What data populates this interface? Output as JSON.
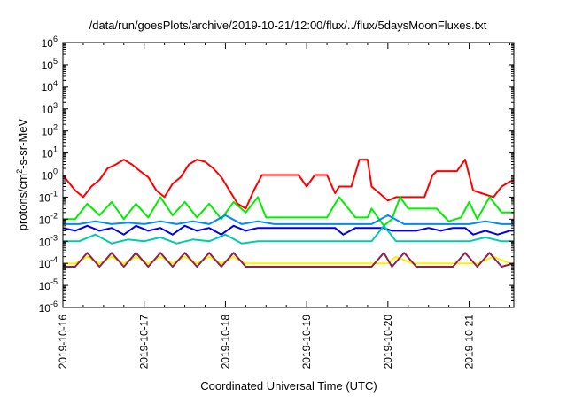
{
  "chart_data": {
    "type": "line",
    "title": "/data/run/goesPlots/archive/2019-10-21/12:00/flux/../flux/5daysMoonFluxes.txt",
    "xlabel": "Coordinated Universal Time (UTC)",
    "ylabel": "protons/cm²-s-sr-MeV",
    "yscale": "log",
    "ylim": [
      1e-06,
      1000000.0
    ],
    "xlim": [
      0,
      5.55
    ],
    "x_unit": "days since 2019-10-16 00:00 UTC",
    "grid": false,
    "x_tick_labels": [
      "2019-10-16",
      "2019-10-17",
      "2019-10-18",
      "2019-10-19",
      "2019-10-20",
      "2019-10-21"
    ],
    "x_tick_values": [
      0,
      1,
      2,
      3,
      4,
      5
    ],
    "y_tick_exponents": [
      -6,
      -5,
      -4,
      -3,
      -2,
      -1,
      0,
      1,
      2,
      3,
      4,
      5,
      6
    ],
    "series": [
      {
        "color": "#ff0000",
        "x": [
          0,
          0.15,
          0.25,
          0.35,
          0.45,
          0.55,
          0.65,
          0.75,
          0.85,
          0.95,
          1.05,
          1.15,
          1.25,
          1.35,
          1.45,
          1.55,
          1.65,
          1.75,
          1.85,
          1.95,
          2.05,
          2.15,
          2.25,
          2.35,
          2.45,
          2.55,
          2.7,
          2.9,
          3.0,
          3.1,
          3.25,
          3.35,
          3.4,
          3.45,
          3.55,
          3.65,
          3.75,
          3.8,
          3.95,
          4.0,
          4.1,
          4.2,
          4.35,
          4.45,
          4.55,
          4.6,
          4.7,
          4.85,
          4.95,
          5.05,
          5.15,
          5.3,
          5.4,
          5.5,
          5.55
        ],
        "y": [
          1.0,
          0.2,
          0.1,
          0.3,
          0.6,
          2.0,
          3.0,
          5.0,
          3.0,
          1.5,
          0.8,
          0.2,
          0.1,
          0.4,
          0.8,
          3.0,
          5.0,
          4.0,
          2.0,
          0.8,
          0.2,
          0.05,
          0.03,
          0.2,
          1.0,
          1.0,
          1.0,
          1.0,
          0.3,
          1.0,
          1.0,
          0.15,
          0.3,
          0.3,
          0.3,
          5.0,
          5.0,
          0.3,
          0.1,
          0.07,
          0.1,
          0.1,
          0.1,
          0.1,
          1.0,
          1.5,
          1.5,
          1.5,
          5.0,
          0.2,
          0.15,
          0.1,
          0.3,
          0.5,
          0.6
        ]
      },
      {
        "color": "#00ee00",
        "x": [
          0,
          0.15,
          0.3,
          0.45,
          0.6,
          0.75,
          0.9,
          1.05,
          1.2,
          1.35,
          1.5,
          1.65,
          1.8,
          1.95,
          2.1,
          2.25,
          2.4,
          2.5,
          2.6,
          2.75,
          2.9,
          3.0,
          3.1,
          3.25,
          3.4,
          3.6,
          3.75,
          3.8,
          3.95,
          4.05,
          4.15,
          4.25,
          4.35,
          4.5,
          4.6,
          4.75,
          4.9,
          5.0,
          5.1,
          5.25,
          5.4,
          5.55
        ],
        "y": [
          0.01,
          0.01,
          0.05,
          0.015,
          0.06,
          0.01,
          0.05,
          0.012,
          0.1,
          0.015,
          0.06,
          0.012,
          0.05,
          0.01,
          0.06,
          0.02,
          0.1,
          0.012,
          0.012,
          0.012,
          0.012,
          0.012,
          0.012,
          0.012,
          0.1,
          0.012,
          0.012,
          0.03,
          0.005,
          0.01,
          0.1,
          0.03,
          0.03,
          0.03,
          0.03,
          0.008,
          0.012,
          0.06,
          0.01,
          0.1,
          0.02,
          0.02
        ]
      },
      {
        "color": "#0088ff",
        "x": [
          0,
          0.2,
          0.4,
          0.6,
          0.8,
          1.0,
          1.2,
          1.4,
          1.6,
          1.8,
          2.0,
          2.2,
          2.4,
          2.6,
          2.8,
          3.0,
          3.2,
          3.4,
          3.6,
          3.8,
          4.0,
          4.2,
          4.4,
          4.6,
          4.8,
          5.0,
          5.2,
          5.4,
          5.55
        ],
        "y": [
          0.006,
          0.006,
          0.008,
          0.006,
          0.007,
          0.006,
          0.008,
          0.006,
          0.008,
          0.006,
          0.015,
          0.006,
          0.008,
          0.006,
          0.006,
          0.006,
          0.006,
          0.006,
          0.006,
          0.006,
          0.015,
          0.006,
          0.006,
          0.006,
          0.006,
          0.006,
          0.008,
          0.006,
          0.006
        ]
      },
      {
        "color": "#0000ee",
        "x": [
          0,
          0.15,
          0.3,
          0.45,
          0.6,
          0.75,
          0.9,
          1.05,
          1.2,
          1.35,
          1.5,
          1.65,
          1.8,
          1.95,
          2.1,
          2.25,
          2.4,
          2.6,
          2.8,
          3.0,
          3.2,
          3.35,
          3.45,
          3.6,
          3.8,
          3.95,
          4.05,
          4.2,
          4.35,
          4.5,
          4.65,
          4.8,
          4.95,
          5.05,
          5.2,
          5.35,
          5.5,
          5.55
        ],
        "y": [
          0.004,
          0.003,
          0.005,
          0.003,
          0.004,
          0.002,
          0.005,
          0.003,
          0.004,
          0.002,
          0.005,
          0.003,
          0.004,
          0.002,
          0.005,
          0.003,
          0.004,
          0.004,
          0.004,
          0.004,
          0.004,
          0.004,
          0.002,
          0.004,
          0.004,
          0.004,
          0.003,
          0.003,
          0.003,
          0.004,
          0.003,
          0.004,
          0.004,
          0.002,
          0.003,
          0.002,
          0.003,
          0.003
        ]
      },
      {
        "color": "#00ccaa",
        "x": [
          0,
          0.2,
          0.4,
          0.6,
          0.8,
          1.0,
          1.2,
          1.4,
          1.6,
          1.8,
          2.0,
          2.2,
          2.4,
          2.6,
          2.8,
          3.0,
          3.2,
          3.4,
          3.6,
          3.8,
          3.95,
          4.1,
          4.25,
          4.4,
          4.6,
          4.8,
          5.0,
          5.2,
          5.4,
          5.55
        ],
        "y": [
          0.001,
          0.001,
          0.002,
          0.0008,
          0.0012,
          0.001,
          0.0015,
          0.0008,
          0.0012,
          0.001,
          0.002,
          0.0008,
          0.001,
          0.001,
          0.001,
          0.001,
          0.001,
          0.001,
          0.001,
          0.001,
          0.005,
          0.001,
          0.001,
          0.001,
          0.001,
          0.001,
          0.001,
          0.0015,
          0.001,
          0.001
        ]
      },
      {
        "color": "#ffee00",
        "x": [
          0,
          0.15,
          0.3,
          0.45,
          0.6,
          0.75,
          0.9,
          1.05,
          1.2,
          1.35,
          1.5,
          1.65,
          1.8,
          1.95,
          2.1,
          2.25,
          2.4,
          2.6,
          2.8,
          3.0,
          3.2,
          3.4,
          3.6,
          3.8,
          4.0,
          4.1,
          4.3,
          4.5,
          4.7,
          4.9,
          5.1,
          5.3,
          5.5,
          5.55
        ],
        "y": [
          0.0001,
          0.0001,
          0.0002,
          0.0001,
          0.0002,
          0.0001,
          0.0002,
          0.0001,
          0.0002,
          0.0001,
          0.0002,
          0.0001,
          0.0002,
          0.0001,
          0.0002,
          0.0001,
          0.0001,
          0.0001,
          0.0001,
          0.0001,
          0.0001,
          0.0001,
          0.0001,
          0.0001,
          0.0001,
          0.0002,
          0.0001,
          0.0001,
          0.0001,
          0.0001,
          0.0001,
          0.0002,
          0.0001,
          0.0001
        ]
      },
      {
        "color": "#8b2252",
        "x": [
          0,
          0.15,
          0.3,
          0.45,
          0.6,
          0.75,
          0.9,
          1.05,
          1.2,
          1.35,
          1.5,
          1.65,
          1.8,
          1.95,
          2.1,
          2.25,
          2.4,
          2.6,
          2.8,
          3.0,
          3.2,
          3.4,
          3.6,
          3.8,
          3.95,
          4.05,
          4.2,
          4.35,
          4.5,
          4.65,
          4.8,
          4.95,
          5.1,
          5.25,
          5.4,
          5.55
        ],
        "y": [
          7e-05,
          7e-05,
          0.0003,
          7e-05,
          0.0003,
          7e-05,
          0.0003,
          7e-05,
          0.0003,
          7e-05,
          0.0003,
          7e-05,
          0.0003,
          7e-05,
          0.0003,
          7e-05,
          7e-05,
          7e-05,
          7e-05,
          7e-05,
          7e-05,
          7e-05,
          7e-05,
          7e-05,
          0.0003,
          7e-05,
          0.0003,
          7e-05,
          7e-05,
          7e-05,
          7e-05,
          0.0003,
          7e-05,
          0.0003,
          7e-05,
          0.0001
        ]
      }
    ]
  }
}
